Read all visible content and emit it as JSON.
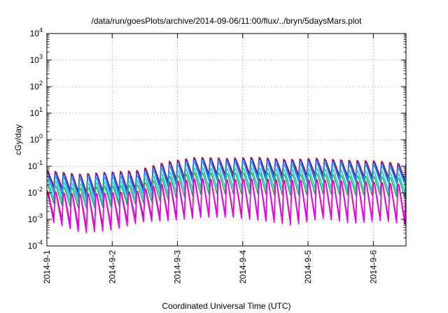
{
  "chart_data": {
    "type": "line",
    "title": "/data/run/goesPlots/archive/2014-09-06/11:00/flux/../bryn/5daysMars.plot",
    "xlabel": "Coordinated Universal Time (UTC)",
    "ylabel": "cGy/day",
    "x_scale": "time",
    "y_scale": "log",
    "xlim": [
      "2014-09-01T00:00",
      "2014-09-06T12:00"
    ],
    "ylim": [
      0.0001,
      10000
    ],
    "x_ticks": [
      "2014-09-01",
      "2014-09-02",
      "2014-09-03",
      "2014-09-04",
      "2014-09-05",
      "2014-09-06"
    ],
    "y_ticks": [
      {
        "base": "10",
        "exp": "-4",
        "value": 0.0001
      },
      {
        "base": "10",
        "exp": "-3",
        "value": 0.001
      },
      {
        "base": "10",
        "exp": "-2",
        "value": 0.01
      },
      {
        "base": "10",
        "exp": "-1",
        "value": 0.1
      },
      {
        "base": "10",
        "exp": "0",
        "value": 1
      },
      {
        "base": "10",
        "exp": "1",
        "value": 10
      },
      {
        "base": "10",
        "exp": "2",
        "value": 100
      },
      {
        "base": "10",
        "exp": "3",
        "value": 1000
      },
      {
        "base": "10",
        "exp": "4",
        "value": 10000
      }
    ],
    "grid": true,
    "legend": "none",
    "cycle_hours": 3,
    "series": [
      {
        "color": "#d40000",
        "peak": [
          0.07,
          0.05,
          0.06,
          0.07,
          0.15,
          0.22,
          0.2,
          0.22,
          0.18,
          0.2,
          0.17,
          0.16,
          0.12
        ],
        "trough": [
          0.018,
          0.01,
          0.012,
          0.015,
          0.03,
          0.05,
          0.05,
          0.05,
          0.045,
          0.05,
          0.04,
          0.04,
          0.03
        ]
      },
      {
        "color": "#2c3cf0",
        "peak": [
          0.06,
          0.045,
          0.055,
          0.06,
          0.13,
          0.2,
          0.18,
          0.2,
          0.16,
          0.18,
          0.15,
          0.14,
          0.1
        ],
        "trough": [
          0.015,
          0.008,
          0.01,
          0.012,
          0.025,
          0.04,
          0.04,
          0.04,
          0.035,
          0.04,
          0.032,
          0.032,
          0.025
        ]
      },
      {
        "color": "#1f8ef0",
        "peak": [
          0.045,
          0.035,
          0.04,
          0.045,
          0.1,
          0.15,
          0.14,
          0.15,
          0.12,
          0.14,
          0.12,
          0.11,
          0.08
        ],
        "trough": [
          0.01,
          0.006,
          0.007,
          0.009,
          0.018,
          0.03,
          0.03,
          0.03,
          0.025,
          0.03,
          0.025,
          0.025,
          0.02
        ]
      },
      {
        "color": "#17c9c9",
        "peak": [
          0.03,
          0.022,
          0.026,
          0.03,
          0.06,
          0.09,
          0.085,
          0.09,
          0.075,
          0.085,
          0.07,
          0.065,
          0.05
        ],
        "trough": [
          0.006,
          0.004,
          0.004,
          0.006,
          0.01,
          0.015,
          0.015,
          0.015,
          0.013,
          0.015,
          0.012,
          0.012,
          0.01
        ]
      },
      {
        "color": "#2aa86e",
        "peak": [
          0.02,
          0.015,
          0.018,
          0.02,
          0.04,
          0.06,
          0.055,
          0.06,
          0.05,
          0.055,
          0.045,
          0.042,
          0.035
        ],
        "trough": [
          0.004,
          0.0025,
          0.003,
          0.004,
          0.006,
          0.009,
          0.009,
          0.009,
          0.008,
          0.009,
          0.008,
          0.008,
          0.006
        ]
      },
      {
        "color": "#b2207a",
        "peak": [
          0.012,
          0.009,
          0.01,
          0.012,
          0.025,
          0.035,
          0.032,
          0.035,
          0.03,
          0.032,
          0.028,
          0.026,
          0.02
        ],
        "trough": [
          0.0012,
          0.0005,
          0.0006,
          0.0012,
          0.0012,
          0.0015,
          0.0015,
          0.0012,
          0.0008,
          0.0014,
          0.0009,
          0.0011,
          0.0008
        ]
      },
      {
        "color": "#ee00ee",
        "peak": [
          0.01,
          0.008,
          0.009,
          0.01,
          0.02,
          0.03,
          0.028,
          0.03,
          0.025,
          0.028,
          0.024,
          0.022,
          0.017
        ],
        "trough": [
          0.0008,
          0.0003,
          0.0004,
          0.0008,
          0.0009,
          0.0012,
          0.0012,
          0.0009,
          0.0006,
          0.0011,
          0.0007,
          0.0009,
          0.0006
        ]
      }
    ]
  }
}
